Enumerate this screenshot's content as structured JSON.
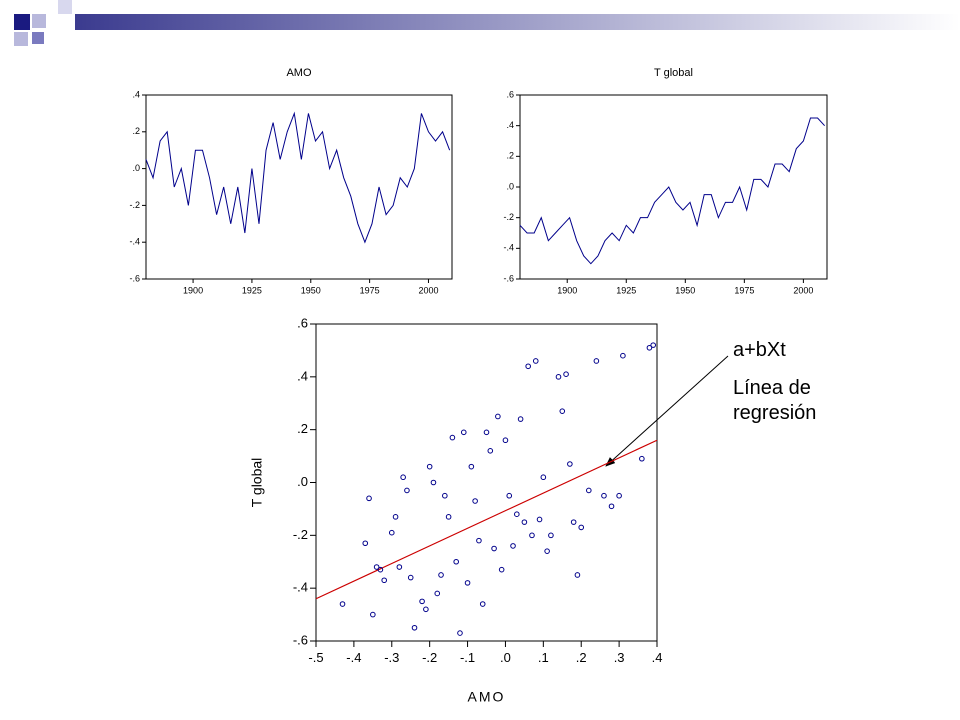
{
  "chart_data": [
    {
      "type": "line",
      "title": "AMO",
      "color": "#00008b",
      "x": [
        1880,
        1883,
        1886,
        1889,
        1892,
        1895,
        1898,
        1901,
        1904,
        1907,
        1910,
        1913,
        1916,
        1919,
        1922,
        1925,
        1928,
        1931,
        1934,
        1937,
        1940,
        1943,
        1946,
        1949,
        1952,
        1955,
        1958,
        1961,
        1964,
        1967,
        1970,
        1973,
        1976,
        1979,
        1982,
        1985,
        1988,
        1991,
        1994,
        1997,
        2000,
        2003,
        2006,
        2009
      ],
      "values": [
        0.05,
        -0.05,
        0.15,
        0.2,
        -0.1,
        0.0,
        -0.2,
        0.1,
        0.1,
        -0.05,
        -0.25,
        -0.1,
        -0.3,
        -0.1,
        -0.35,
        0.0,
        -0.3,
        0.1,
        0.25,
        0.05,
        0.2,
        0.3,
        0.05,
        0.3,
        0.15,
        0.2,
        0.0,
        0.1,
        -0.05,
        -0.15,
        -0.3,
        -0.4,
        -0.3,
        -0.1,
        -0.25,
        -0.2,
        -0.05,
        -0.1,
        0.0,
        0.3,
        0.2,
        0.15,
        0.2,
        0.1
      ],
      "xlim": [
        1880,
        2010
      ],
      "xticks": [
        1900,
        1925,
        1950,
        1975,
        2000
      ],
      "ylim": [
        -0.6,
        0.4
      ],
      "yticks": [
        {
          "value": 0.4,
          "label": ".4"
        },
        {
          "value": 0.2,
          "label": ".2"
        },
        {
          "value": 0.0,
          "label": ".0"
        },
        {
          "value": -0.2,
          "label": "-.2"
        },
        {
          "value": -0.4,
          "label": "-.4"
        },
        {
          "value": -0.6,
          "label": "-.6"
        }
      ]
    },
    {
      "type": "line",
      "title": "T global",
      "color": "#00008b",
      "x": [
        1880,
        1883,
        1886,
        1889,
        1892,
        1895,
        1898,
        1901,
        1904,
        1907,
        1910,
        1913,
        1916,
        1919,
        1922,
        1925,
        1928,
        1931,
        1934,
        1937,
        1940,
        1943,
        1946,
        1949,
        1952,
        1955,
        1958,
        1961,
        1964,
        1967,
        1970,
        1973,
        1976,
        1979,
        1982,
        1985,
        1988,
        1991,
        1994,
        1997,
        2000,
        2003,
        2006,
        2009
      ],
      "values": [
        -0.25,
        -0.3,
        -0.3,
        -0.2,
        -0.35,
        -0.3,
        -0.25,
        -0.2,
        -0.35,
        -0.45,
        -0.5,
        -0.45,
        -0.35,
        -0.3,
        -0.35,
        -0.25,
        -0.3,
        -0.2,
        -0.2,
        -0.1,
        -0.05,
        0.0,
        -0.1,
        -0.15,
        -0.1,
        -0.25,
        -0.05,
        -0.05,
        -0.2,
        -0.1,
        -0.1,
        0.0,
        -0.15,
        0.05,
        0.05,
        0.0,
        0.15,
        0.15,
        0.1,
        0.25,
        0.3,
        0.45,
        0.45,
        0.4
      ],
      "xlim": [
        1880,
        2010
      ],
      "xticks": [
        1900,
        1925,
        1950,
        1975,
        2000
      ],
      "ylim": [
        -0.6,
        0.6
      ],
      "yticks": [
        {
          "value": 0.6,
          "label": ".6"
        },
        {
          "value": 0.4,
          "label": ".4"
        },
        {
          "value": 0.2,
          "label": ".2"
        },
        {
          "value": 0.0,
          "label": ".0"
        },
        {
          "value": -0.2,
          "label": "-.2"
        },
        {
          "value": -0.4,
          "label": "-.4"
        },
        {
          "value": -0.6,
          "label": "-.6"
        }
      ]
    },
    {
      "type": "scatter",
      "xlabel": "AMO",
      "ylabel": "T global",
      "color": "#00008b",
      "x": [
        -0.43,
        -0.37,
        -0.36,
        -0.35,
        -0.34,
        -0.33,
        -0.32,
        -0.3,
        -0.29,
        -0.28,
        -0.27,
        -0.26,
        -0.25,
        -0.24,
        -0.22,
        -0.21,
        -0.2,
        -0.19,
        -0.18,
        -0.17,
        -0.16,
        -0.15,
        -0.14,
        -0.13,
        -0.12,
        -0.11,
        -0.1,
        -0.09,
        -0.08,
        -0.07,
        -0.06,
        -0.05,
        -0.04,
        -0.03,
        -0.02,
        -0.01,
        0.0,
        0.01,
        0.02,
        0.03,
        0.04,
        0.05,
        0.06,
        0.07,
        0.08,
        0.09,
        0.1,
        0.11,
        0.12,
        0.14,
        0.15,
        0.16,
        0.17,
        0.18,
        0.19,
        0.2,
        0.22,
        0.24,
        0.26,
        0.28,
        0.3,
        0.31,
        0.36,
        0.38,
        0.39
      ],
      "values": [
        -0.46,
        -0.23,
        -0.06,
        -0.5,
        -0.32,
        -0.33,
        -0.37,
        -0.19,
        -0.13,
        -0.32,
        0.02,
        -0.03,
        -0.36,
        -0.55,
        -0.45,
        -0.48,
        0.06,
        0.0,
        -0.42,
        -0.35,
        -0.05,
        -0.13,
        0.17,
        -0.3,
        -0.57,
        0.19,
        -0.38,
        0.06,
        -0.07,
        -0.22,
        -0.46,
        0.19,
        0.12,
        -0.25,
        0.25,
        -0.33,
        0.16,
        -0.05,
        -0.24,
        -0.12,
        0.24,
        -0.15,
        0.44,
        -0.2,
        0.46,
        -0.14,
        0.02,
        -0.26,
        -0.2,
        0.4,
        0.27,
        0.41,
        0.07,
        -0.15,
        -0.35,
        -0.17,
        -0.03,
        0.46,
        -0.05,
        -0.09,
        -0.05,
        0.48,
        0.09,
        0.51,
        0.52
      ],
      "regression_line": {
        "color": "#cc0000",
        "x": [
          -0.5,
          0.4
        ],
        "y": [
          -0.44,
          0.16
        ]
      },
      "xlim": [
        -0.5,
        0.4
      ],
      "xticks": [
        {
          "value": -0.5,
          "label": "-.5"
        },
        {
          "value": -0.4,
          "label": "-.4"
        },
        {
          "value": -0.3,
          "label": "-.3"
        },
        {
          "value": -0.2,
          "label": "-.2"
        },
        {
          "value": -0.1,
          "label": "-.1"
        },
        {
          "value": 0.0,
          "label": ".0"
        },
        {
          "value": 0.1,
          "label": ".1"
        },
        {
          "value": 0.2,
          "label": ".2"
        },
        {
          "value": 0.3,
          "label": ".3"
        },
        {
          "value": 0.4,
          "label": ".4"
        }
      ],
      "ylim": [
        -0.6,
        0.6
      ],
      "yticks": [
        {
          "value": 0.6,
          "label": ".6"
        },
        {
          "value": 0.4,
          "label": ".4"
        },
        {
          "value": 0.2,
          "label": ".2"
        },
        {
          "value": 0.0,
          "label": ".0"
        },
        {
          "value": -0.2,
          "label": "-.2"
        },
        {
          "value": -0.4,
          "label": "-.4"
        },
        {
          "value": -0.6,
          "label": "-.6"
        }
      ]
    }
  ],
  "annotations": [
    "a+bXt",
    "Línea de regresión"
  ]
}
